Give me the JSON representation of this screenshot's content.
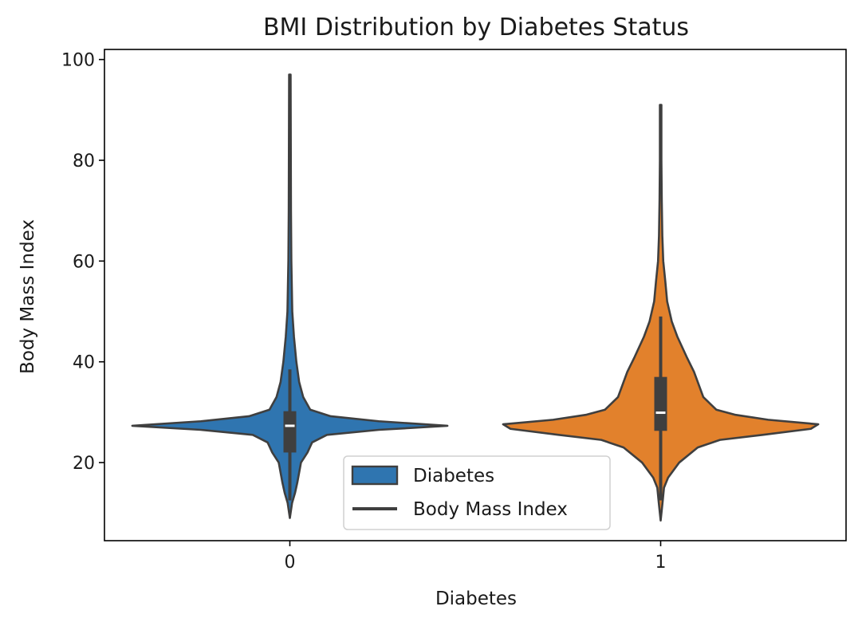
{
  "chart_data": {
    "type": "violin",
    "title": "BMI Distribution by Diabetes Status",
    "xlabel": "Diabetes",
    "ylabel": "Body Mass Index",
    "categories": [
      "0",
      "1"
    ],
    "ylim": [
      4.5,
      102
    ],
    "yticks": [
      20,
      40,
      60,
      80,
      100
    ],
    "colors": [
      "#2f75b0",
      "#e2812c"
    ],
    "legend": {
      "position": "lower center",
      "entries": [
        {
          "label": "Diabetes",
          "kind": "patch",
          "color": "#2f75b0"
        },
        {
          "label": "Body Mass Index",
          "kind": "line",
          "color": "#3f3f3f"
        }
      ]
    },
    "violins": [
      {
        "category": "0",
        "min": 9,
        "max": 97,
        "q1": 22,
        "median": 27.3,
        "q3": 30.2,
        "whisker_low": 12.5,
        "whisker_high": 38.5,
        "half_width": [
          [
            9,
            0.0
          ],
          [
            12,
            0.012
          ],
          [
            14,
            0.028
          ],
          [
            16,
            0.04
          ],
          [
            18,
            0.05
          ],
          [
            20,
            0.06
          ],
          [
            22,
            0.095
          ],
          [
            24,
            0.12
          ],
          [
            25.5,
            0.2
          ],
          [
            26.5,
            0.48
          ],
          [
            27.3,
            0.85
          ],
          [
            28.2,
            0.48
          ],
          [
            29.2,
            0.22
          ],
          [
            30.5,
            0.11
          ],
          [
            33,
            0.072
          ],
          [
            36,
            0.05
          ],
          [
            40,
            0.035
          ],
          [
            45,
            0.022
          ],
          [
            50,
            0.013
          ],
          [
            60,
            0.008
          ],
          [
            70,
            0.006
          ],
          [
            97,
            0.004
          ]
        ]
      },
      {
        "category": "1",
        "min": 8.5,
        "max": 91,
        "q1": 26.3,
        "median": 29.9,
        "q3": 37,
        "whisker_low": 12.5,
        "whisker_high": 49,
        "half_width": [
          [
            8.5,
            0.0
          ],
          [
            12,
            0.01
          ],
          [
            15,
            0.018
          ],
          [
            17,
            0.04
          ],
          [
            20,
            0.1
          ],
          [
            23,
            0.2
          ],
          [
            24.5,
            0.32
          ],
          [
            25.5,
            0.55
          ],
          [
            26.7,
            0.81
          ],
          [
            27.6,
            0.85
          ],
          [
            28.5,
            0.58
          ],
          [
            29.5,
            0.4
          ],
          [
            30.5,
            0.3
          ],
          [
            33,
            0.23
          ],
          [
            36,
            0.2
          ],
          [
            38,
            0.18
          ],
          [
            41,
            0.14
          ],
          [
            45,
            0.09
          ],
          [
            48,
            0.06
          ],
          [
            52,
            0.035
          ],
          [
            56,
            0.025
          ],
          [
            60,
            0.014
          ],
          [
            65,
            0.009
          ],
          [
            72,
            0.006
          ],
          [
            80,
            0.004
          ],
          [
            91,
            0.004
          ]
        ]
      }
    ]
  }
}
